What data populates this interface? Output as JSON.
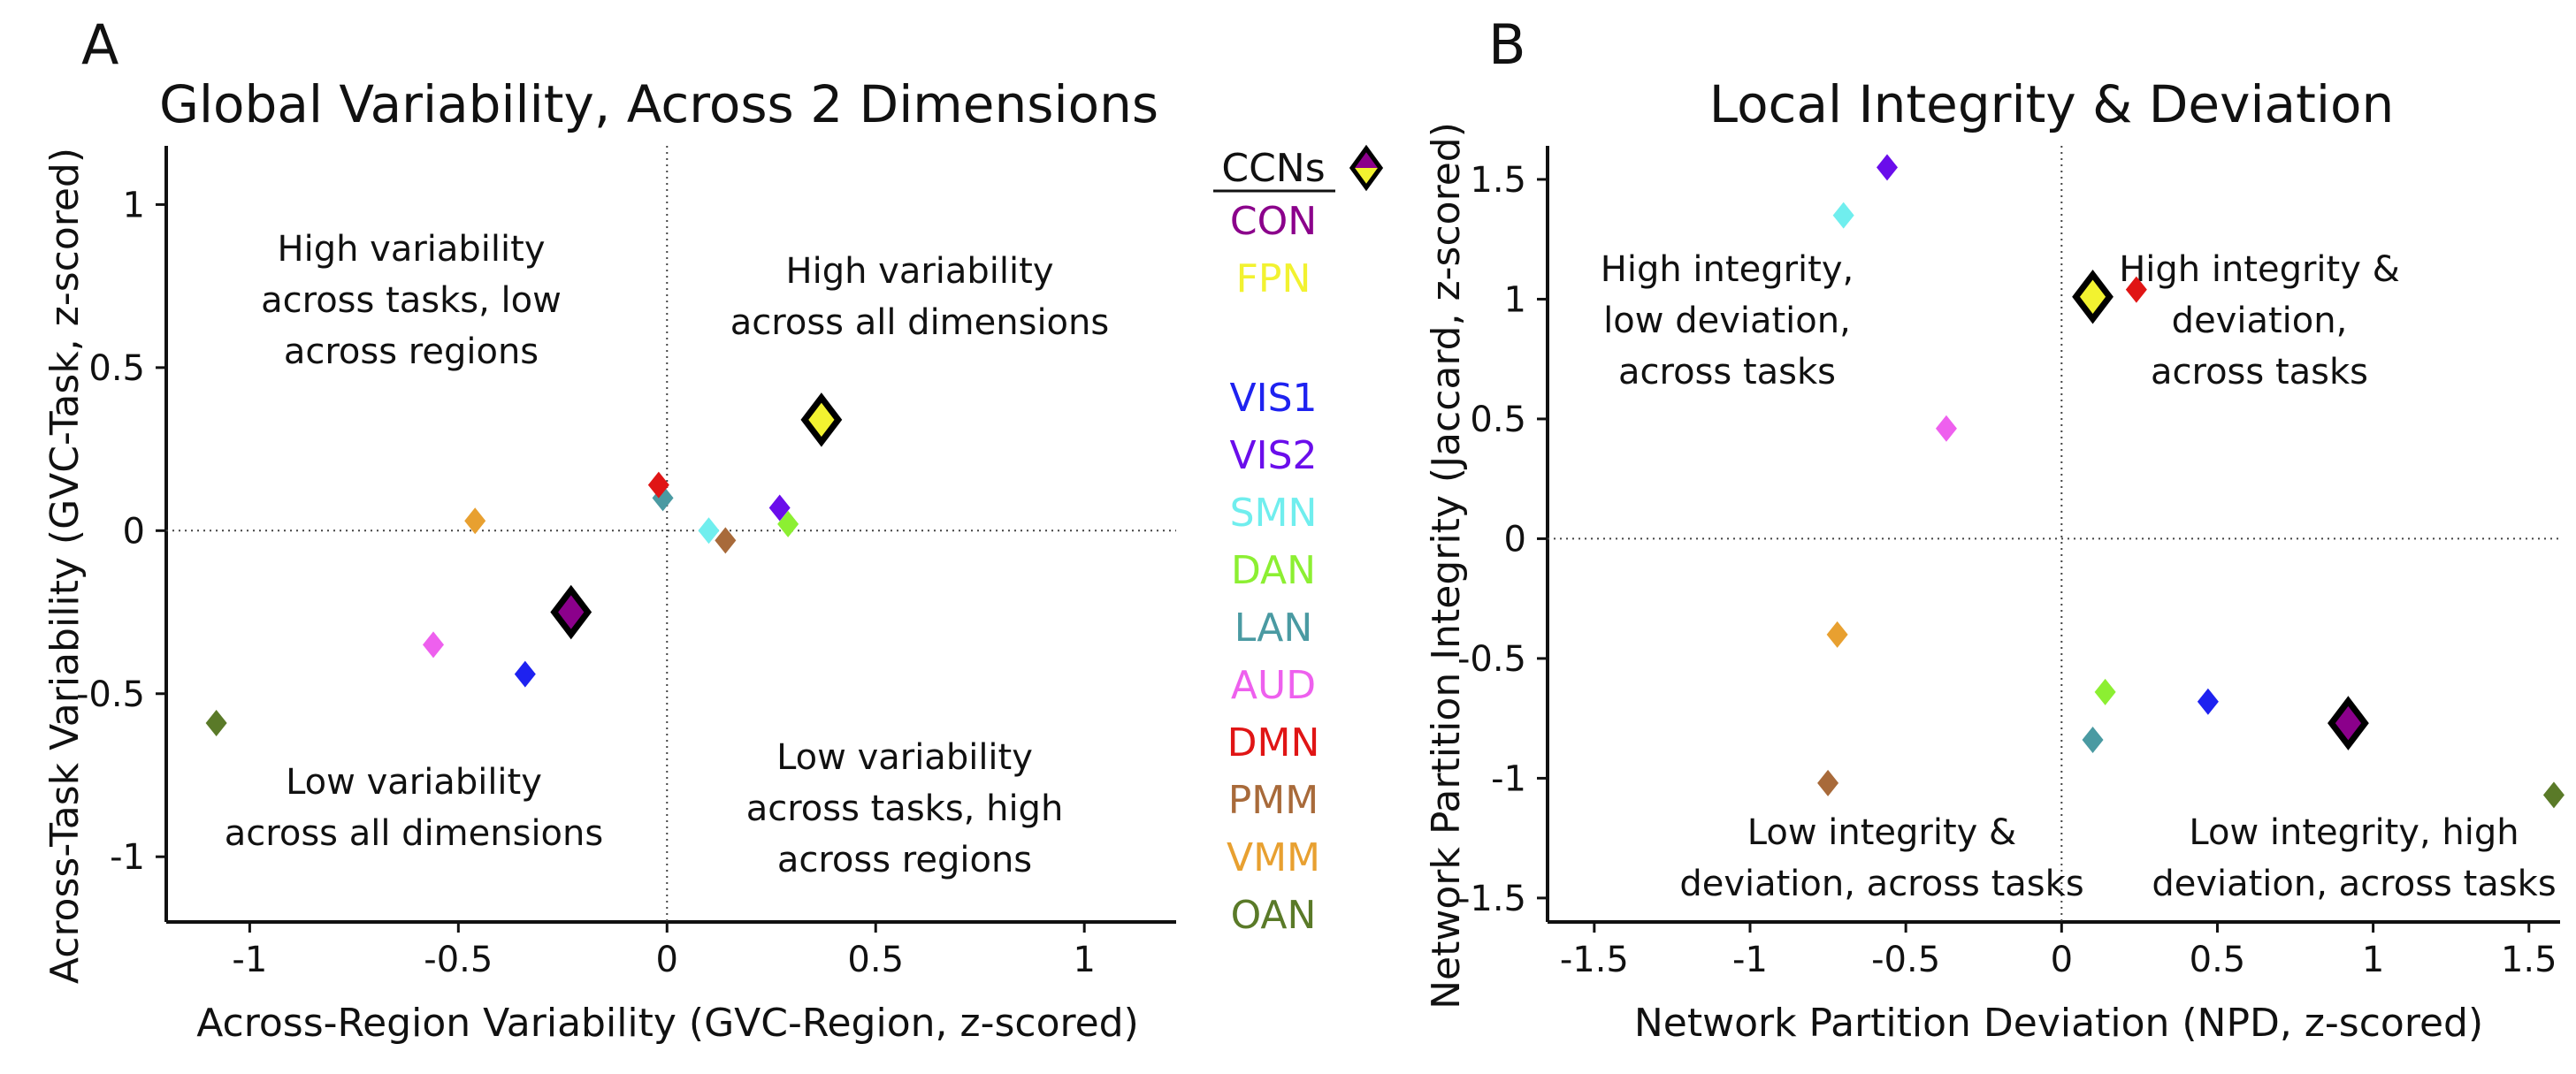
{
  "panels": [
    {
      "letter": "A",
      "title": "Global Variability, Across 2 Dimensions",
      "xlabel": "Across-Region Variability (GVC-Region, z-scored)",
      "ylabel": "Across-Task Variability (GVC-Task, z-scored)",
      "annotations": [
        {
          "lines": [
            "High variability",
            "across tasks, low",
            "across regions"
          ]
        },
        {
          "lines": [
            "High variability",
            "across all dimensions"
          ]
        },
        {
          "lines": [
            "Low variability",
            "across all dimensions"
          ]
        },
        {
          "lines": [
            "Low variability",
            "across tasks, high",
            "across regions"
          ]
        }
      ]
    },
    {
      "letter": "B",
      "title": "Local Integrity & Deviation",
      "xlabel": "Network Partition Deviation (NPD, z-scored)",
      "ylabel": "Network Partition Integrity (Jaccard, z-scored)",
      "annotations": [
        {
          "lines": [
            "High integrity,",
            "low deviation,",
            "across tasks"
          ]
        },
        {
          "lines": [
            "High integrity &",
            "deviation,",
            "across tasks"
          ]
        },
        {
          "lines": [
            "Low integrity &",
            "deviation, across tasks"
          ]
        },
        {
          "lines": [
            "Low integrity, high",
            "deviation, across tasks"
          ]
        }
      ]
    }
  ],
  "legend": {
    "heading": "CCNs",
    "items": [
      {
        "label": "CON",
        "color": "#8B008B"
      },
      {
        "label": "FPN",
        "color": "#F2F230"
      },
      {
        "label": "VIS1",
        "color": "#1E22F0"
      },
      {
        "label": "VIS2",
        "color": "#6A0DEB"
      },
      {
        "label": "SMN",
        "color": "#70EEEE"
      },
      {
        "label": "DAN",
        "color": "#8CEF32"
      },
      {
        "label": "LAN",
        "color": "#4A9AA2"
      },
      {
        "label": "AUD",
        "color": "#EE60EE"
      },
      {
        "label": "DMN",
        "color": "#E01515"
      },
      {
        "label": "PMM",
        "color": "#A86A3A"
      },
      {
        "label": "VMM",
        "color": "#E8A030"
      },
      {
        "label": "OAN",
        "color": "#5A7A28"
      }
    ]
  },
  "chart_data": [
    {
      "type": "scatter",
      "title": "Global Variability, Across 2 Dimensions",
      "xlabel": "Across-Region Variability (GVC-Region, z-scored)",
      "ylabel": "Across-Task Variability (GVC-Task, z-scored)",
      "xlim": [
        -1.2,
        1.22
      ],
      "ylim": [
        -1.2,
        1.18
      ],
      "xticks": [
        -1,
        -0.5,
        0,
        0.5,
        1
      ],
      "yticks": [
        -1,
        -0.5,
        0,
        0.5,
        1
      ],
      "grid": false,
      "reference_lines": {
        "x": 0,
        "y": 0
      },
      "points": [
        {
          "network": "CON",
          "x": -0.23,
          "y": -0.25,
          "highlight": true
        },
        {
          "network": "FPN",
          "x": 0.37,
          "y": 0.34,
          "highlight": true
        },
        {
          "network": "VIS1",
          "x": -0.34,
          "y": -0.44
        },
        {
          "network": "VIS2",
          "x": 0.27,
          "y": 0.07
        },
        {
          "network": "SMN",
          "x": 0.1,
          "y": 0.0
        },
        {
          "network": "DAN",
          "x": 0.29,
          "y": 0.02
        },
        {
          "network": "LAN",
          "x": -0.01,
          "y": 0.1
        },
        {
          "network": "AUD",
          "x": -0.56,
          "y": -0.35
        },
        {
          "network": "DMN",
          "x": -0.02,
          "y": 0.14
        },
        {
          "network": "PMM",
          "x": 0.14,
          "y": -0.03
        },
        {
          "network": "VMM",
          "x": -0.46,
          "y": 0.03
        },
        {
          "network": "OAN",
          "x": -1.08,
          "y": -0.59
        }
      ]
    },
    {
      "type": "scatter",
      "title": "Local Integrity & Deviation",
      "xlabel": "Network Partition Deviation (NPD, z-scored)",
      "ylabel": "Network Partition Integrity (Jaccard, z-scored)",
      "xlim": [
        -1.65,
        1.6
      ],
      "ylim": [
        -1.6,
        1.64
      ],
      "xticks": [
        -1.5,
        -1,
        -0.5,
        0,
        0.5,
        1,
        1.5
      ],
      "yticks": [
        -1.5,
        -1,
        -0.5,
        0,
        0.5,
        1,
        1.5
      ],
      "grid": false,
      "reference_lines": {
        "x": 0,
        "y": 0
      },
      "points": [
        {
          "network": "CON",
          "x": 0.92,
          "y": -0.77,
          "highlight": true
        },
        {
          "network": "FPN",
          "x": 0.1,
          "y": 1.01,
          "highlight": true
        },
        {
          "network": "VIS1",
          "x": 0.47,
          "y": -0.68
        },
        {
          "network": "VIS2",
          "x": -0.56,
          "y": 1.55
        },
        {
          "network": "SMN",
          "x": -0.7,
          "y": 1.35
        },
        {
          "network": "DAN",
          "x": 0.14,
          "y": -0.64
        },
        {
          "network": "LAN",
          "x": 0.1,
          "y": -0.84
        },
        {
          "network": "AUD",
          "x": -0.37,
          "y": 0.46
        },
        {
          "network": "DMN",
          "x": 0.24,
          "y": 1.04
        },
        {
          "network": "PMM",
          "x": -0.75,
          "y": -1.02
        },
        {
          "network": "VMM",
          "x": -0.72,
          "y": -0.4
        },
        {
          "network": "OAN",
          "x": 1.58,
          "y": -1.07
        }
      ]
    }
  ]
}
